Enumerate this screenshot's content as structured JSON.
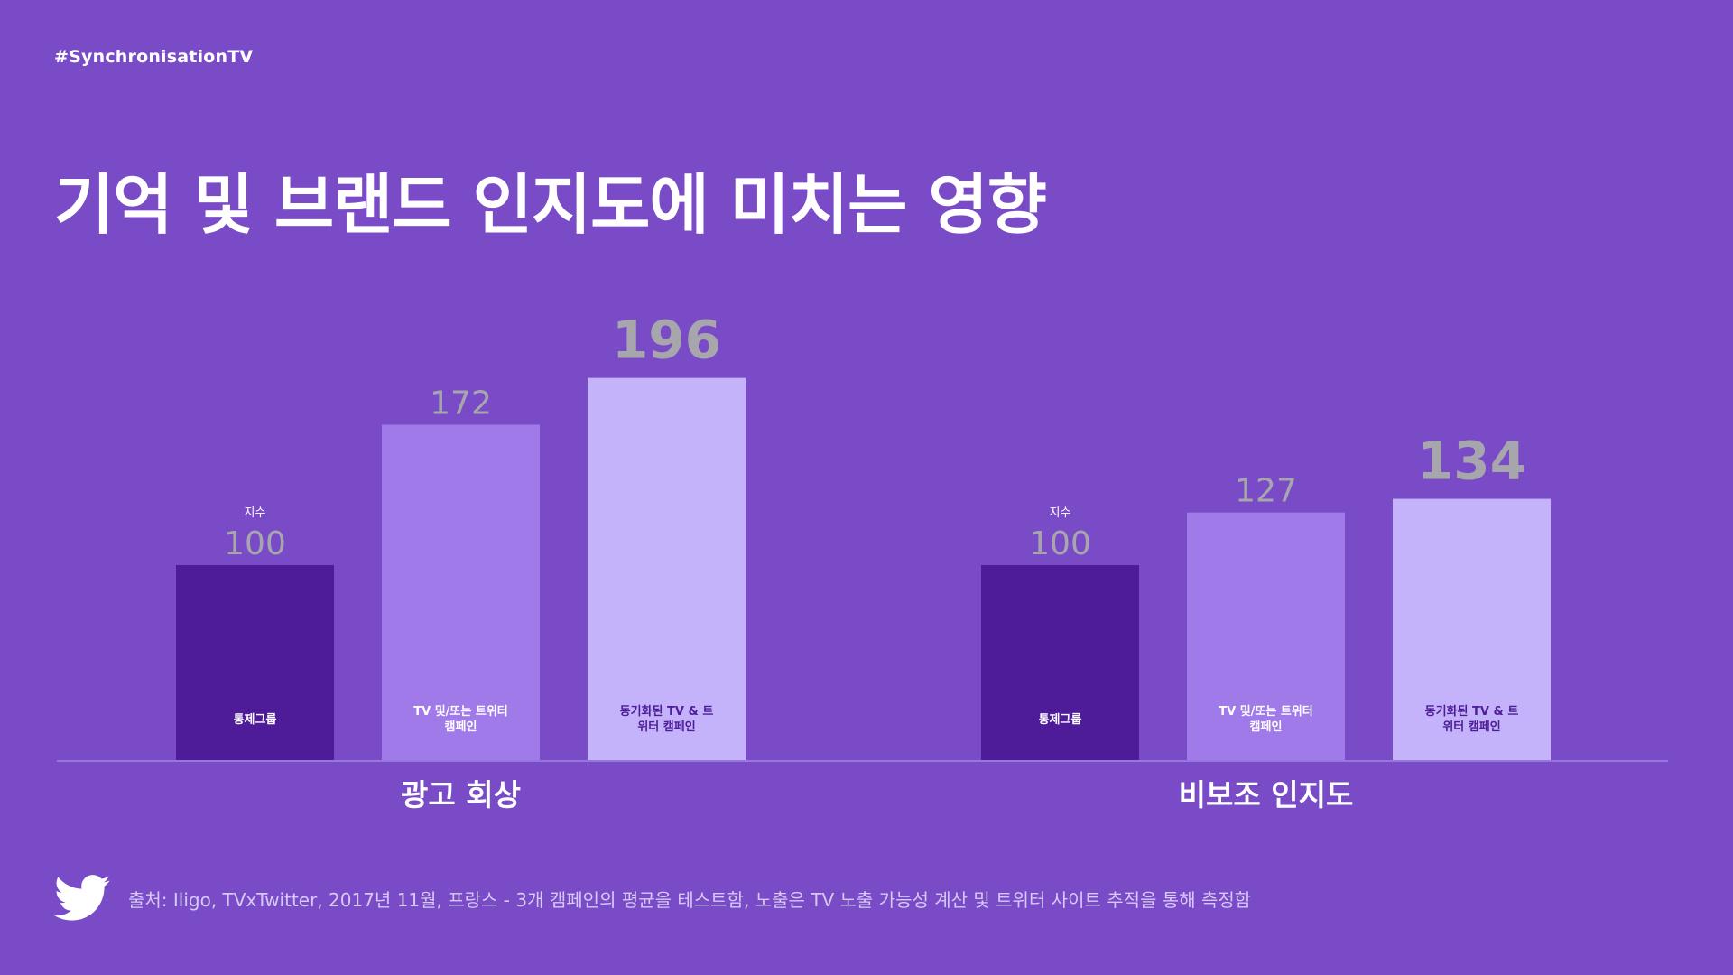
{
  "header": {
    "hashtag": "#SynchronisationTV",
    "title": "기억 및 브랜드 인지도에 미치는 영향"
  },
  "chart_data": {
    "type": "bar",
    "index_label": "지수",
    "series_labels": [
      "통제그룹",
      "TV 및/또는 트위터 캠페인",
      "동기화된 TV & 트위터 캠페인"
    ],
    "series_label_lines": [
      [
        "통제그룹"
      ],
      [
        "TV 및/또는 트위터",
        "캠페인"
      ],
      [
        "동기화된 TV & 트",
        "위터 캠페인"
      ]
    ],
    "groups": [
      {
        "name": "광고 회상",
        "values": [
          100,
          172,
          196
        ]
      },
      {
        "name": "비보조 인지도",
        "values": [
          100,
          127,
          134
        ]
      }
    ],
    "colors": [
      "#4e1c99",
      "#a07ae9",
      "#c4b3fa"
    ],
    "value_color": "#a8a6ad",
    "ylim": [
      0,
      200
    ]
  },
  "footer": {
    "icon": "twitter-bird-icon",
    "source": "출처: Iligo, TVxTwitter, 2017년 11월, 프랑스 - 3개 캠페인의 평균을 테스트함, 노출은 TV 노출 가능성 계산 및 트위터 사이트 추적을 통해 측정함"
  }
}
